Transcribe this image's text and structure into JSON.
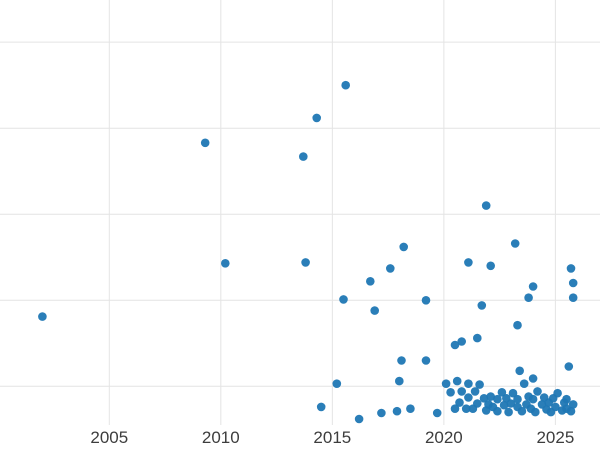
{
  "chart_data": {
    "type": "scatter",
    "title": "",
    "xlabel": "",
    "ylabel": "",
    "x_tick_labels": [
      "2005",
      "2010",
      "2015",
      "2020",
      "2025"
    ],
    "x_tick_values": [
      2005,
      2010,
      2015,
      2020,
      2025
    ],
    "y_tick_labels": [],
    "y_gridline_values": [
      0,
      1,
      2,
      3,
      4
    ],
    "xlim": [
      2000.1,
      2027.0
    ],
    "ylim": [
      -0.45,
      4.49
    ],
    "grid": true,
    "grid_color": "#e4e4e4",
    "dot_color": "#1f77b4",
    "dot_radius": 4.3,
    "legend": "none",
    "points": [
      [
        2002.0,
        0.81
      ],
      [
        2009.3,
        2.83
      ],
      [
        2010.2,
        1.43
      ],
      [
        2013.7,
        2.67
      ],
      [
        2013.8,
        1.44
      ],
      [
        2014.3,
        3.12
      ],
      [
        2015.6,
        3.5
      ],
      [
        2014.5,
        -0.24
      ],
      [
        2015.2,
        0.03
      ],
      [
        2015.5,
        1.01
      ],
      [
        2016.2,
        -0.38
      ],
      [
        2016.7,
        1.22
      ],
      [
        2016.9,
        0.88
      ],
      [
        2017.2,
        -0.31
      ],
      [
        2017.6,
        1.37
      ],
      [
        2017.9,
        -0.29
      ],
      [
        2018.0,
        0.06
      ],
      [
        2018.1,
        0.3
      ],
      [
        2018.2,
        1.62
      ],
      [
        2018.5,
        -0.26
      ],
      [
        2019.2,
        1.0
      ],
      [
        2019.2,
        0.3
      ],
      [
        2019.7,
        -0.31
      ],
      [
        2020.5,
        0.48
      ],
      [
        2020.8,
        0.52
      ],
      [
        2021.1,
        1.44
      ],
      [
        2021.5,
        0.56
      ],
      [
        2021.7,
        0.94
      ],
      [
        2021.9,
        2.1
      ],
      [
        2022.1,
        1.4
      ],
      [
        2023.2,
        1.66
      ],
      [
        2023.3,
        0.71
      ],
      [
        2023.4,
        0.18
      ],
      [
        2023.8,
        1.03
      ],
      [
        2024.0,
        1.16
      ],
      [
        2024.0,
        0.09
      ],
      [
        2025.6,
        0.23
      ],
      [
        2025.7,
        1.37
      ],
      [
        2025.8,
        1.2
      ],
      [
        2025.8,
        1.03
      ],
      [
        2020.1,
        0.03
      ],
      [
        2020.3,
        -0.07
      ],
      [
        2020.5,
        -0.26
      ],
      [
        2020.6,
        0.06
      ],
      [
        2020.7,
        -0.19
      ],
      [
        2020.8,
        -0.06
      ],
      [
        2021.0,
        -0.26
      ],
      [
        2021.1,
        0.03
      ],
      [
        2021.1,
        -0.13
      ],
      [
        2021.3,
        -0.26
      ],
      [
        2021.4,
        -0.06
      ],
      [
        2021.5,
        -0.2
      ],
      [
        2021.6,
        0.02
      ],
      [
        2021.8,
        -0.14
      ],
      [
        2021.9,
        -0.28
      ],
      [
        2022.0,
        -0.21
      ],
      [
        2022.1,
        -0.12
      ],
      [
        2022.2,
        -0.24
      ],
      [
        2022.4,
        -0.15
      ],
      [
        2022.4,
        -0.29
      ],
      [
        2022.6,
        -0.07
      ],
      [
        2022.7,
        -0.22
      ],
      [
        2022.8,
        -0.14
      ],
      [
        2022.9,
        -0.3
      ],
      [
        2023.0,
        -0.2
      ],
      [
        2023.1,
        -0.08
      ],
      [
        2023.3,
        -0.24
      ],
      [
        2023.3,
        -0.15
      ],
      [
        2023.5,
        -0.29
      ],
      [
        2023.6,
        0.03
      ],
      [
        2023.7,
        -0.21
      ],
      [
        2023.8,
        -0.12
      ],
      [
        2023.9,
        -0.26
      ],
      [
        2024.0,
        -0.15
      ],
      [
        2024.1,
        -0.3
      ],
      [
        2024.2,
        -0.06
      ],
      [
        2024.4,
        -0.21
      ],
      [
        2024.5,
        -0.13
      ],
      [
        2024.6,
        -0.27
      ],
      [
        2024.7,
        -0.19
      ],
      [
        2024.8,
        -0.3
      ],
      [
        2024.9,
        -0.14
      ],
      [
        2025.0,
        -0.24
      ],
      [
        2025.1,
        -0.08
      ],
      [
        2025.3,
        -0.28
      ],
      [
        2025.4,
        -0.19
      ],
      [
        2025.5,
        -0.26
      ],
      [
        2025.5,
        -0.15
      ],
      [
        2025.7,
        -0.29
      ],
      [
        2025.8,
        -0.21
      ]
    ]
  }
}
